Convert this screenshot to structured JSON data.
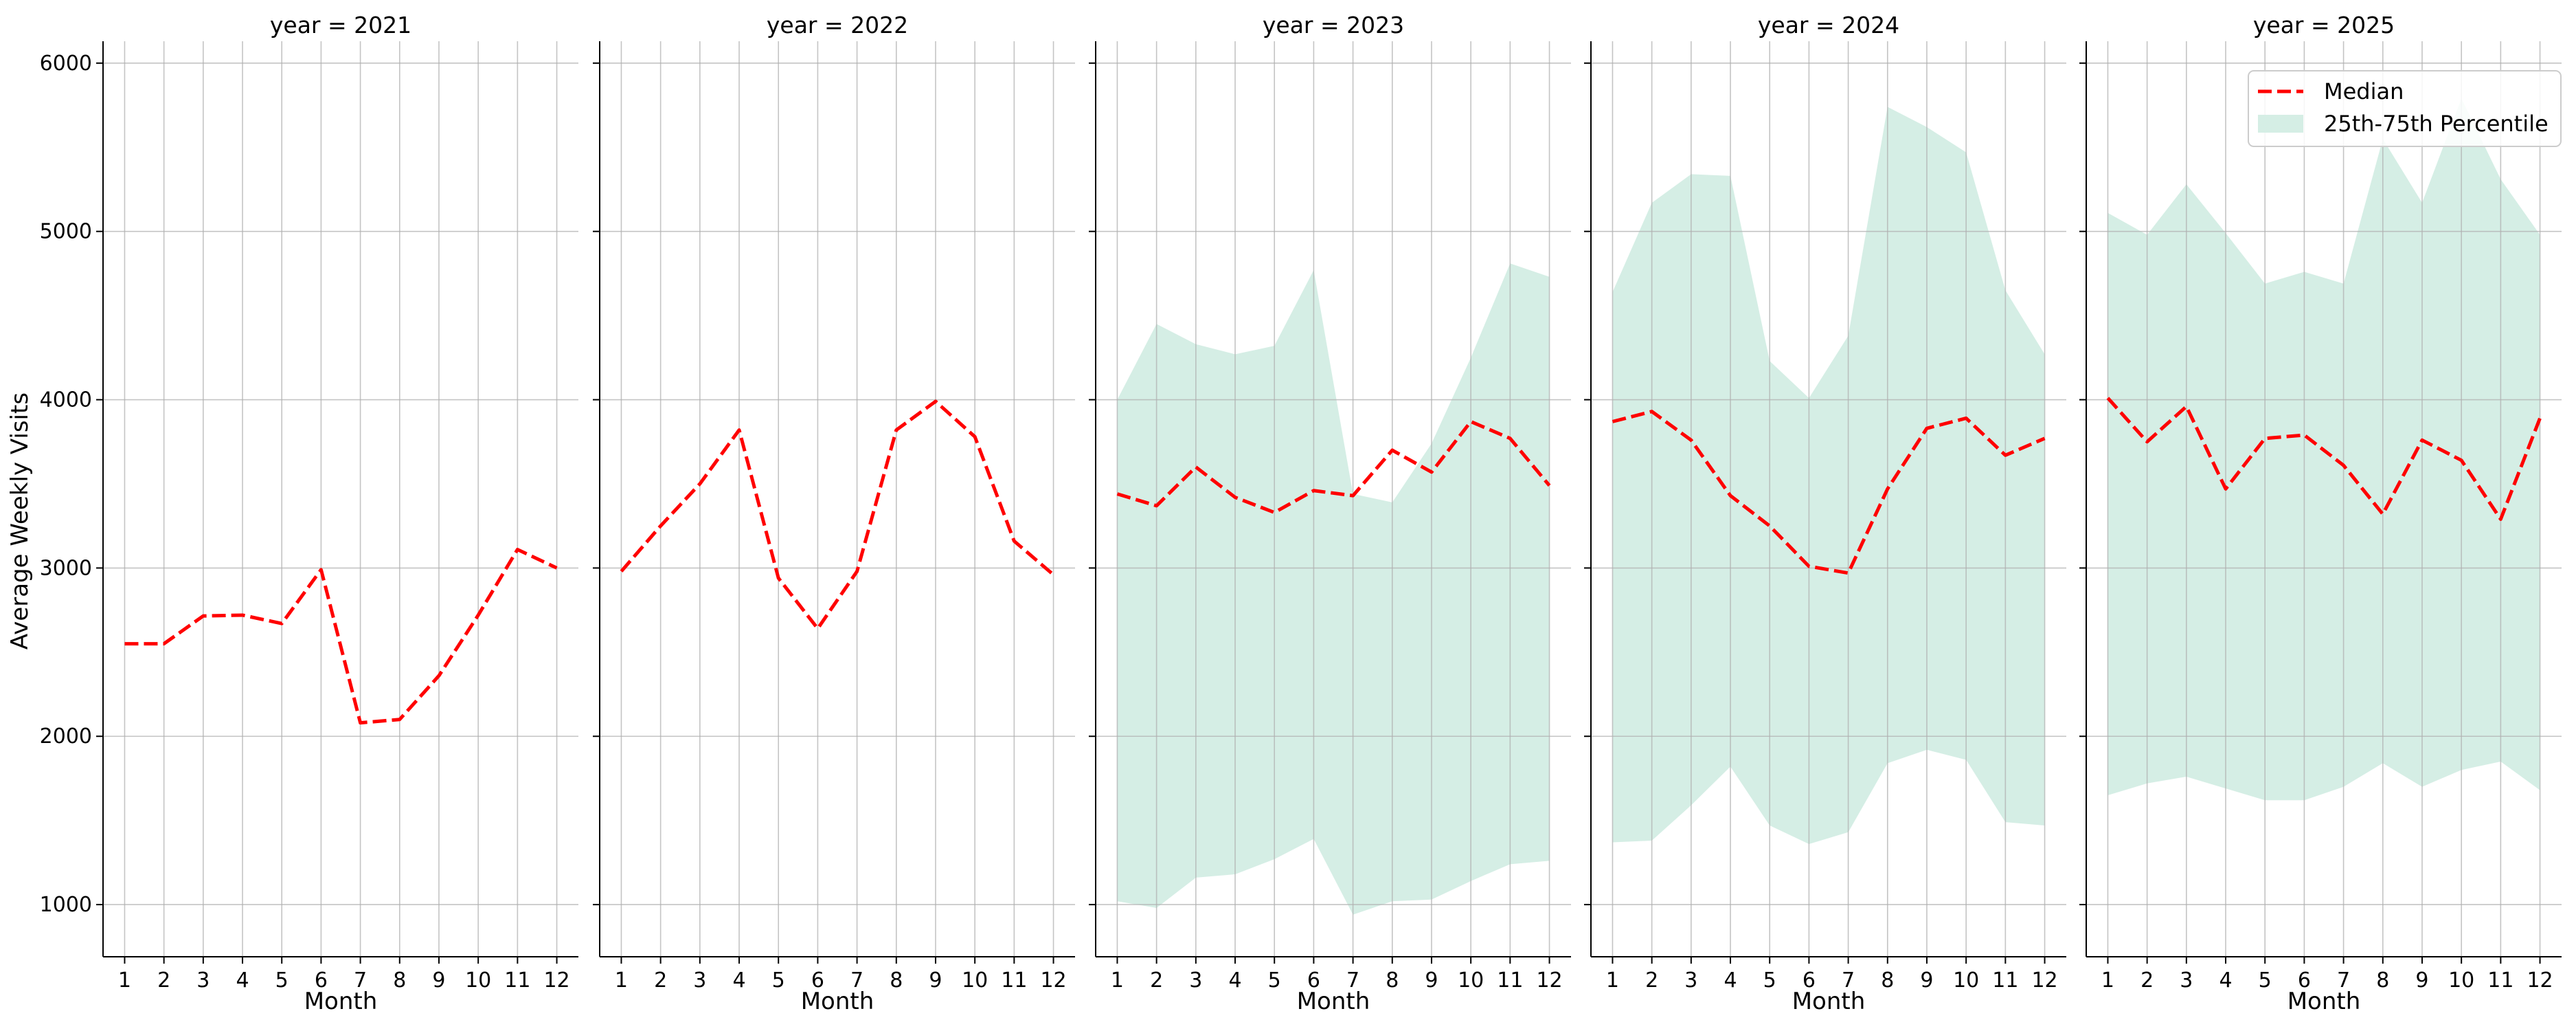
{
  "chart_data": {
    "type": "line",
    "ylabel": "Average Weekly Visits",
    "xlabel": "Month",
    "ylim": [
      690,
      6130
    ],
    "yticks": [
      1000,
      2000,
      3000,
      4000,
      5000,
      6000
    ],
    "x": [
      1,
      2,
      3,
      4,
      5,
      6,
      7,
      8,
      9,
      10,
      11,
      12
    ],
    "xlim": [
      0.45,
      12.55
    ],
    "grid": true,
    "legend": {
      "position": "top-right",
      "median_label": "Median",
      "band_label": "25th-75th Percentile"
    },
    "colors": {
      "median": "#ff0000",
      "band": "#d5eee5",
      "grid": "#b0b0b0"
    },
    "panels": [
      {
        "title": "year = 2021",
        "median": [
          2550,
          2550,
          2715,
          2720,
          2670,
          2990,
          2080,
          2100,
          2360,
          2720,
          3110,
          3000
        ],
        "q25": null,
        "q75": null
      },
      {
        "title": "year = 2022",
        "median": [
          2980,
          3250,
          3500,
          3820,
          2940,
          2640,
          2980,
          3820,
          3990,
          3780,
          3160,
          2960
        ],
        "q25": null,
        "q75": null
      },
      {
        "title": "year = 2023",
        "median": [
          3440,
          3370,
          3600,
          3420,
          3330,
          3460,
          3430,
          3700,
          3570,
          3870,
          3770,
          3490
        ],
        "q25": [
          1020,
          980,
          1160,
          1180,
          1270,
          1390,
          940,
          1020,
          1030,
          1140,
          1240,
          1260
        ],
        "q75": [
          4000,
          4450,
          4330,
          4270,
          4320,
          4770,
          3440,
          3390,
          3740,
          4250,
          4810,
          4730
        ]
      },
      {
        "title": "year = 2024",
        "median": [
          3870,
          3930,
          3760,
          3430,
          3250,
          3010,
          2970,
          3470,
          3830,
          3890,
          3670,
          3770
        ],
        "q25": [
          1370,
          1380,
          1590,
          1820,
          1470,
          1360,
          1430,
          1840,
          1920,
          1860,
          1490,
          1470
        ],
        "q75": [
          4640,
          5170,
          5340,
          5330,
          4230,
          4010,
          4380,
          5740,
          5620,
          5470,
          4650,
          4270
        ]
      },
      {
        "title": "year = 2025",
        "median": [
          4010,
          3750,
          3960,
          3470,
          3770,
          3790,
          3610,
          3320,
          3760,
          3640,
          3290,
          3890
        ],
        "q25": [
          1650,
          1720,
          1760,
          1690,
          1620,
          1620,
          1700,
          1840,
          1700,
          1800,
          1850,
          1680
        ],
        "q75": [
          5110,
          4980,
          5280,
          4990,
          4690,
          4760,
          4690,
          5550,
          5170,
          5790,
          5310,
          4980
        ]
      }
    ]
  }
}
